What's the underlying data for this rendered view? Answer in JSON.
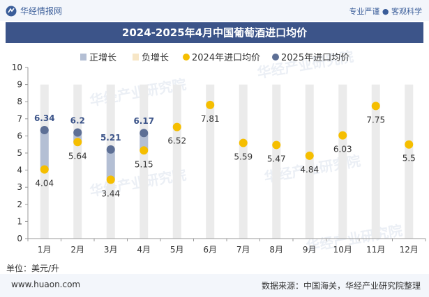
{
  "header": {
    "brand": "华经情报网",
    "tagline": "专业严谨 ● 客观科学"
  },
  "title": "2024-2025年4月中国葡萄酒进口均价",
  "unit_label": "单位：美元/升",
  "footer": {
    "site": "www.huaon.com",
    "source": "数据来源：中国海关，华经产业研究院整理"
  },
  "watermark": "华经产业研究院",
  "colors": {
    "title_bg": "#3c5489",
    "series_2024": "#f5be00",
    "series_2025": "#5d6f95",
    "positive_growth": "#b4bfd4",
    "negative_growth": "#f7e6c6",
    "column_bg": "#ebebeb"
  },
  "chart_data": {
    "type": "line",
    "title": "2024-2025年4月中国葡萄酒进口均价",
    "categories": [
      "1月",
      "2月",
      "3月",
      "4月",
      "5月",
      "6月",
      "7月",
      "8月",
      "9月",
      "10月",
      "11月",
      "12月"
    ],
    "series": [
      {
        "name": "2024年进口均价",
        "values": [
          4.04,
          5.64,
          3.44,
          5.15,
          6.52,
          7.81,
          5.59,
          5.47,
          4.84,
          6.03,
          7.75,
          5.5
        ]
      },
      {
        "name": "2025年进口均价",
        "values": [
          6.34,
          6.2,
          5.21,
          6.17,
          null,
          null,
          null,
          null,
          null,
          null,
          null,
          null
        ]
      }
    ],
    "legend": [
      "正增长",
      "负增长",
      "2024年进口均价",
      "2025年进口均价"
    ],
    "legend_position": "top",
    "ylim": [
      0,
      10
    ],
    "yticks": [
      0,
      1,
      2,
      3,
      4,
      5,
      6,
      7,
      8,
      9,
      10
    ],
    "grid": false
  }
}
